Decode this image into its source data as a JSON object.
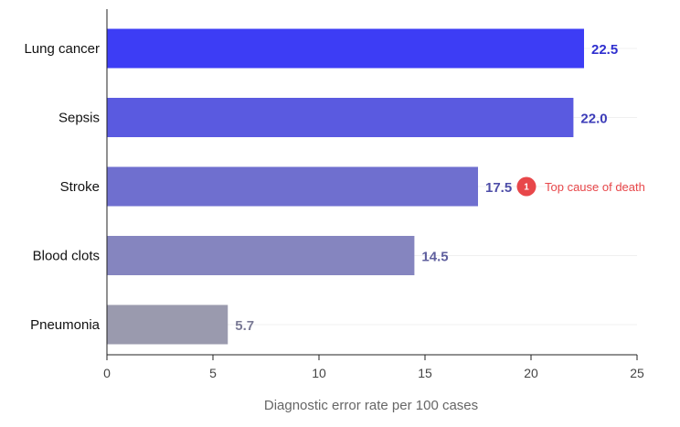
{
  "chart_data": {
    "type": "bar",
    "orientation": "horizontal",
    "categories": [
      "Lung cancer",
      "Sepsis",
      "Stroke",
      "Blood clots",
      "Pneumonia"
    ],
    "values": [
      22.5,
      22.0,
      17.5,
      14.5,
      5.7
    ],
    "value_labels": [
      "22.5",
      "22.0",
      "17.5",
      "14.5",
      "5.7"
    ],
    "bar_colors": [
      "#3d3df5",
      "#5a5ae0",
      "#6f6fcf",
      "#8585bf",
      "#9a9aae"
    ],
    "value_label_colors": [
      "#2f2fcf",
      "#3c3cb8",
      "#4e4ea8",
      "#5f5f9e",
      "#7a7a95"
    ],
    "xlabel": "Diagnostic error rate per 100 cases",
    "ylabel": "",
    "xlim": [
      0,
      25
    ],
    "xticks": [
      0,
      5,
      10,
      15,
      20,
      25
    ],
    "xtick_labels": [
      "0",
      "5",
      "10",
      "15",
      "20",
      "25"
    ],
    "grid": "faint horizontal lines at each category",
    "annotation": {
      "category": "Stroke",
      "marker": "1",
      "text": "Top cause of death",
      "color": "#e8474a"
    }
  }
}
